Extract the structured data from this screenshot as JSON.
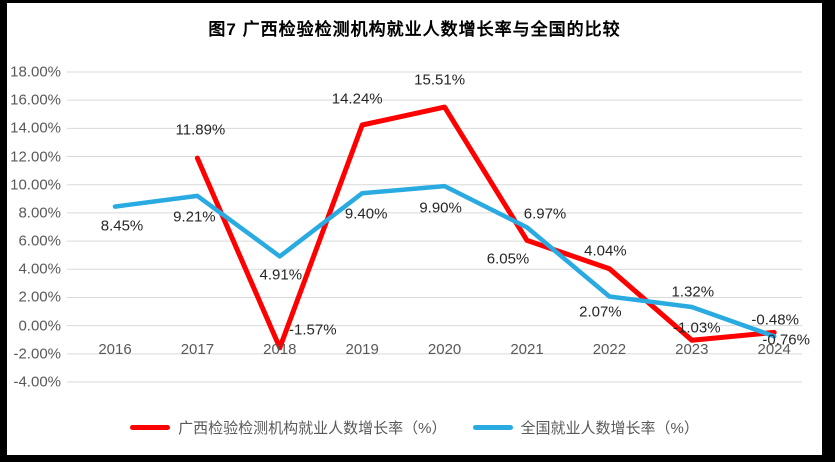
{
  "chart_data": {
    "type": "line",
    "title": "图7 广西检验检测机构就业人数增长率与全国的比较",
    "categories": [
      "2016",
      "2017",
      "2018",
      "2019",
      "2020",
      "2021",
      "2022",
      "2023",
      "2024"
    ],
    "series": [
      {
        "name": "广西检验检测机构就业人数增长率（%）",
        "color": "#FF0000",
        "values": [
          null,
          11.89,
          -1.57,
          14.24,
          15.51,
          6.05,
          4.04,
          -1.03,
          -0.48
        ],
        "data_labels": [
          "",
          "11.89%",
          "-1.57%",
          "14.24%",
          "15.51%",
          "6.05%",
          "4.04%",
          "-1.03%",
          "-0.48%"
        ]
      },
      {
        "name": "全国就业人数增长率（%）",
        "color": "#29ABE2",
        "values": [
          8.45,
          9.21,
          4.91,
          9.4,
          9.9,
          6.97,
          2.07,
          1.32,
          -0.76
        ],
        "data_labels": [
          "8.45%",
          "9.21%",
          "4.91%",
          "9.40%",
          "9.90%",
          "6.97%",
          "2.07%",
          "1.32%",
          "-0.76%"
        ]
      }
    ],
    "y_axis": {
      "min": -4,
      "max": 18,
      "step": 2,
      "tick_labels": [
        "18.00%",
        "16.00%",
        "14.00%",
        "12.00%",
        "10.00%",
        "8.00%",
        "6.00%",
        "4.00%",
        "2.00%",
        "0.00%",
        "-2.00%",
        "-4.00%"
      ]
    },
    "grid": true,
    "legend_position": "bottom",
    "colors": {
      "gridline": "#D9D9D9",
      "axis_text": "#595959",
      "data_label_text": "#262626",
      "panel_background": "#FFFFFF",
      "frame": "#000000"
    }
  }
}
